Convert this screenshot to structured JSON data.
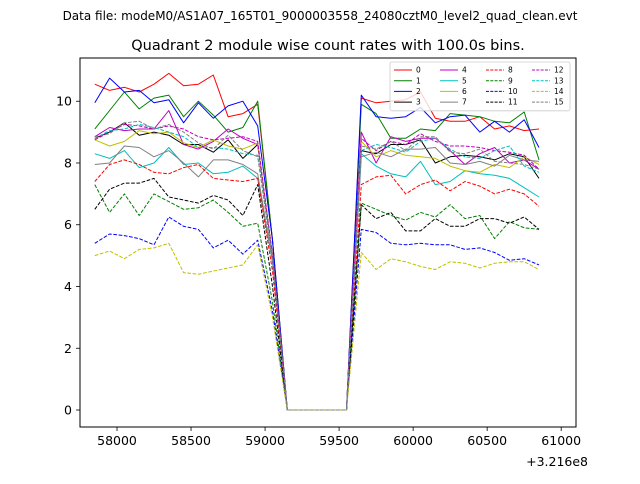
{
  "figure": {
    "suptitle": "Data file: modeM0/AS1A07_165T01_9000003558_24080cztM0_level2_quad_clean.evt",
    "title": "Quadrant 2 module wise count rates with 100.0s bins.",
    "x_offset_label": "+3.216e8"
  },
  "chart_data": {
    "type": "line",
    "title": "Quadrant 2 module wise count rates with 100.0s bins.",
    "xlabel": "",
    "ylabel": "",
    "x_offset": 321600000,
    "xlim": [
      57750,
      61100
    ],
    "ylim": [
      -0.55,
      11.4
    ],
    "xticks": [
      58000,
      58500,
      59000,
      59500,
      60000,
      60500,
      61000
    ],
    "xtick_labels": [
      "58000",
      "58500",
      "59000",
      "59500",
      "60000",
      "60500",
      "61000"
    ],
    "yticks": [
      0,
      2,
      4,
      6,
      8,
      10
    ],
    "ytick_labels": [
      "0",
      "2",
      "4",
      "6",
      "8",
      "10"
    ],
    "grid": false,
    "legend": {
      "placement": "top-right",
      "columns": 4
    },
    "x": [
      57850,
      57950,
      58050,
      58150,
      58250,
      58350,
      58450,
      58550,
      58650,
      58750,
      58850,
      58950,
      59050,
      59150,
      59250,
      59350,
      59450,
      59550,
      59650,
      59750,
      59850,
      59950,
      60050,
      60150,
      60250,
      60350,
      60450,
      60550,
      60650,
      60750,
      60850
    ],
    "series": [
      {
        "name": "0",
        "color": "#ff0000",
        "dash": "solid",
        "values": [
          10.55,
          10.35,
          10.45,
          10.3,
          10.55,
          10.9,
          10.5,
          10.55,
          10.85,
          9.5,
          9.6,
          9.9,
          5.5,
          0,
          0,
          0,
          0,
          0,
          10.1,
          9.95,
          10.0,
          10.05,
          10.3,
          9.45,
          9.35,
          9.35,
          9.5,
          9.1,
          9.2,
          9.05,
          9.1
        ]
      },
      {
        "name": "1",
        "color": "#008000",
        "dash": "solid",
        "values": [
          9.1,
          9.7,
          10.3,
          9.75,
          10.1,
          10.2,
          9.5,
          10.0,
          9.55,
          9.0,
          9.15,
          10.0,
          5.5,
          0,
          0,
          0,
          0,
          0,
          9.9,
          9.6,
          8.8,
          8.8,
          9.1,
          9.05,
          9.6,
          9.55,
          9.5,
          9.35,
          9.3,
          9.65,
          8.1
        ]
      },
      {
        "name": "2",
        "color": "#0000ff",
        "dash": "solid",
        "values": [
          9.95,
          10.75,
          10.3,
          10.35,
          9.95,
          10.05,
          9.3,
          9.95,
          9.45,
          9.85,
          10.0,
          9.2,
          5.5,
          0,
          0,
          0,
          0,
          0,
          10.2,
          9.5,
          9.45,
          9.5,
          9.8,
          9.3,
          9.5,
          9.55,
          9.0,
          9.35,
          9.0,
          9.4,
          8.5
        ]
      },
      {
        "name": "3",
        "color": "#000000",
        "dash": "solid",
        "values": [
          8.8,
          9.0,
          9.3,
          8.9,
          9.0,
          8.9,
          8.6,
          8.6,
          8.35,
          8.75,
          8.15,
          8.6,
          5.0,
          0,
          0,
          0,
          0,
          0,
          8.4,
          8.3,
          8.6,
          8.6,
          8.75,
          8.0,
          8.2,
          8.25,
          8.2,
          8.1,
          8.3,
          8.2,
          7.5
        ]
      },
      {
        "name": "4",
        "color": "#bf00bf",
        "dash": "solid",
        "values": [
          8.85,
          9.15,
          9.05,
          9.1,
          9.1,
          9.7,
          8.6,
          8.45,
          8.7,
          9.1,
          8.8,
          8.6,
          5.0,
          0,
          0,
          0,
          0,
          0,
          9.0,
          8.0,
          8.85,
          8.7,
          8.8,
          8.8,
          8.4,
          7.95,
          8.3,
          8.5,
          8.0,
          8.1,
          7.8
        ]
      },
      {
        "name": "5",
        "color": "#00bfbf",
        "dash": "solid",
        "values": [
          8.3,
          8.15,
          8.4,
          7.85,
          8.0,
          8.5,
          7.95,
          8.0,
          7.65,
          7.7,
          7.9,
          7.5,
          4.8,
          0,
          0,
          0,
          0,
          0,
          8.3,
          7.9,
          7.65,
          7.55,
          8.05,
          7.3,
          7.4,
          7.75,
          7.65,
          7.6,
          7.5,
          7.2,
          6.9
        ]
      },
      {
        "name": "6",
        "color": "#bfbf00",
        "dash": "solid",
        "values": [
          8.75,
          8.55,
          8.7,
          9.05,
          8.95,
          9.0,
          8.65,
          8.5,
          8.75,
          8.55,
          8.45,
          8.65,
          5.0,
          0,
          0,
          0,
          0,
          0,
          8.7,
          8.2,
          8.4,
          8.25,
          8.2,
          8.15,
          7.9,
          7.75,
          7.7,
          7.95,
          7.85,
          8.2,
          7.95
        ]
      },
      {
        "name": "7",
        "color": "#808080",
        "dash": "solid",
        "values": [
          7.95,
          8.0,
          8.55,
          8.5,
          8.2,
          8.4,
          8.0,
          7.55,
          8.1,
          8.1,
          7.95,
          7.65,
          4.8,
          0,
          0,
          0,
          0,
          0,
          8.2,
          8.35,
          8.2,
          8.45,
          8.45,
          8.5,
          8.0,
          7.95,
          8.05,
          7.9,
          8.25,
          8.1,
          8.05
        ]
      },
      {
        "name": "8",
        "color": "#ff0000",
        "dash": "dashed",
        "values": [
          7.4,
          7.95,
          8.1,
          7.95,
          7.7,
          7.65,
          7.85,
          7.95,
          7.5,
          7.45,
          7.4,
          7.5,
          4.5,
          0,
          0,
          0,
          0,
          0,
          7.3,
          7.55,
          7.6,
          7.0,
          7.3,
          7.45,
          7.1,
          7.4,
          7.25,
          7.0,
          7.15,
          7.0,
          6.6
        ]
      },
      {
        "name": "9",
        "color": "#008000",
        "dash": "dashed",
        "values": [
          7.3,
          6.4,
          7.0,
          6.3,
          7.0,
          6.75,
          6.5,
          6.55,
          6.8,
          6.4,
          5.95,
          6.05,
          3.5,
          0,
          0,
          0,
          0,
          0,
          6.7,
          6.5,
          6.3,
          6.15,
          6.4,
          6.25,
          6.65,
          6.2,
          6.3,
          5.55,
          6.1,
          5.9,
          5.85
        ]
      },
      {
        "name": "10",
        "color": "#0000ff",
        "dash": "dashed",
        "values": [
          5.4,
          5.7,
          5.65,
          5.55,
          5.35,
          6.25,
          5.95,
          5.85,
          5.25,
          5.5,
          5.05,
          5.5,
          3.2,
          0,
          0,
          0,
          0,
          0,
          5.85,
          5.75,
          5.4,
          5.35,
          5.4,
          5.35,
          5.35,
          5.2,
          5.25,
          5.1,
          4.85,
          4.9,
          4.7
        ]
      },
      {
        "name": "11",
        "color": "#000000",
        "dash": "dashed",
        "values": [
          6.5,
          7.15,
          7.35,
          7.35,
          7.5,
          6.9,
          6.8,
          6.7,
          6.95,
          6.8,
          6.3,
          7.3,
          4.0,
          0,
          0,
          0,
          0,
          0,
          6.65,
          6.2,
          6.4,
          5.8,
          5.8,
          6.2,
          5.95,
          5.95,
          6.2,
          6.2,
          6.05,
          6.25,
          5.85
        ]
      },
      {
        "name": "12",
        "color": "#bf00bf",
        "dash": "dashed",
        "values": [
          8.75,
          9.0,
          9.25,
          9.2,
          9.1,
          9.2,
          9.1,
          8.85,
          8.75,
          8.8,
          8.85,
          8.7,
          5.0,
          0,
          0,
          0,
          0,
          0,
          8.8,
          8.4,
          8.7,
          8.6,
          8.95,
          8.7,
          8.55,
          8.55,
          8.5,
          8.4,
          8.35,
          8.25,
          7.8
        ]
      },
      {
        "name": "13",
        "color": "#00bfbf",
        "dash": "dashed",
        "values": [
          8.8,
          9.05,
          9.1,
          9.25,
          9.15,
          9.0,
          8.85,
          8.5,
          8.5,
          8.45,
          8.3,
          8.25,
          4.9,
          0,
          0,
          0,
          0,
          0,
          8.4,
          8.6,
          8.5,
          8.35,
          8.7,
          8.8,
          8.45,
          8.2,
          8.15,
          8.4,
          8.55,
          7.9,
          7.7
        ]
      },
      {
        "name": "14",
        "color": "#bfbf00",
        "dash": "dashed",
        "values": [
          5.0,
          5.15,
          4.9,
          5.2,
          5.25,
          5.4,
          4.45,
          4.4,
          4.5,
          4.6,
          4.7,
          5.35,
          3.0,
          0,
          0,
          0,
          0,
          0,
          5.1,
          4.55,
          4.9,
          4.8,
          4.65,
          4.55,
          4.8,
          4.75,
          4.6,
          4.75,
          4.8,
          4.8,
          4.55
        ]
      },
      {
        "name": "15",
        "color": "#808080",
        "dash": "dashed",
        "values": [
          8.85,
          8.95,
          9.3,
          9.35,
          9.1,
          9.25,
          9.0,
          8.65,
          8.45,
          8.9,
          8.4,
          8.2,
          4.9,
          0,
          0,
          0,
          0,
          0,
          8.55,
          8.45,
          8.7,
          8.4,
          8.85,
          8.85,
          8.35,
          8.3,
          8.45,
          8.05,
          8.0,
          7.95,
          7.8
        ]
      }
    ]
  }
}
